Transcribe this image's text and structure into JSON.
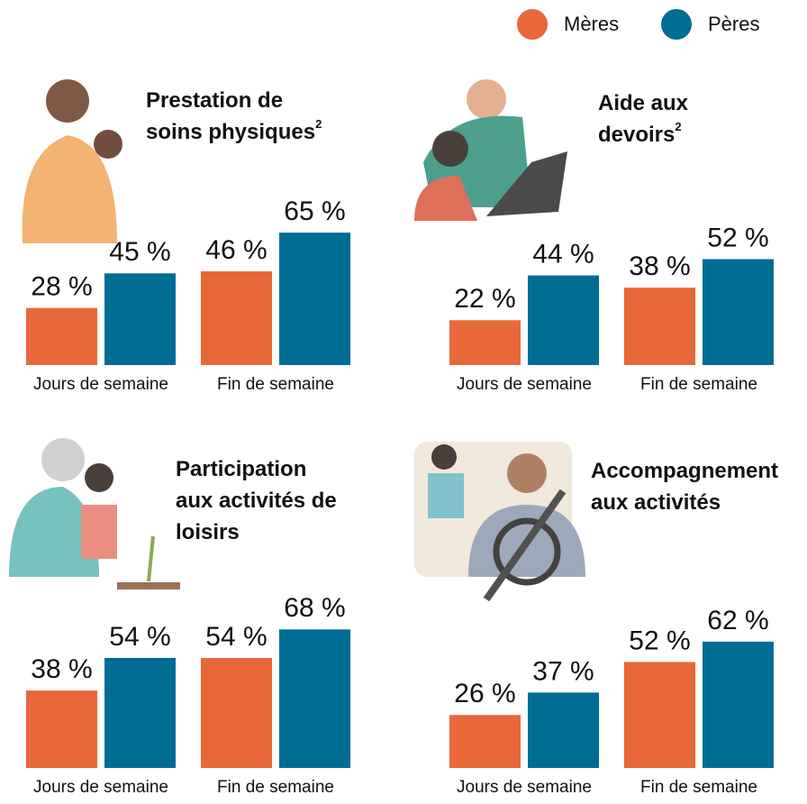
{
  "chart_data": [
    {
      "type": "bar",
      "title": [
        "Prestation de",
        "soins physiques"
      ],
      "title_note": "2",
      "categories": [
        "Jours de semaine",
        "Fin de semaine"
      ],
      "series": [
        {
          "name": "Mères",
          "color": "#e8683a",
          "values": [
            28,
            46
          ],
          "value_labels": [
            "28 %",
            "46 %"
          ]
        },
        {
          "name": "Pères",
          "color": "#006d94",
          "values": [
            45,
            65
          ],
          "value_labels": [
            "45 %",
            "65 %"
          ]
        }
      ],
      "ylim": [
        0,
        100
      ]
    },
    {
      "type": "bar",
      "title": [
        "Aide aux",
        "devoirs"
      ],
      "title_note": "2",
      "categories": [
        "Jours de semaine",
        "Fin de semaine"
      ],
      "series": [
        {
          "name": "Mères",
          "color": "#e8683a",
          "values": [
            22,
            38
          ],
          "value_labels": [
            "22 %",
            "38 %"
          ]
        },
        {
          "name": "Pères",
          "color": "#006d94",
          "values": [
            44,
            52
          ],
          "value_labels": [
            "44 %",
            "52 %"
          ]
        }
      ],
      "ylim": [
        0,
        100
      ]
    },
    {
      "type": "bar",
      "title": [
        "Participation",
        "aux activités de",
        "loisirs"
      ],
      "categories": [
        "Jours de semaine",
        "Fin de semaine"
      ],
      "series": [
        {
          "name": "Mères",
          "color": "#e8683a",
          "values": [
            38,
            54
          ],
          "value_labels": [
            "38 %",
            "54 %"
          ]
        },
        {
          "name": "Pères",
          "color": "#006d94",
          "values": [
            54,
            68
          ],
          "value_labels": [
            "54 %",
            "68 %"
          ]
        }
      ],
      "ylim": [
        0,
        100
      ]
    },
    {
      "type": "bar",
      "title": [
        "Accompagnement",
        "aux activités"
      ],
      "categories": [
        "Jours de semaine",
        "Fin de semaine"
      ],
      "series": [
        {
          "name": "Mères",
          "color": "#e8683a",
          "values": [
            26,
            52
          ],
          "value_labels": [
            "26 %",
            "52 %"
          ]
        },
        {
          "name": "Pères",
          "color": "#006d94",
          "values": [
            37,
            62
          ],
          "value_labels": [
            "37 %",
            "62 %"
          ]
        }
      ],
      "ylim": [
        0,
        100
      ]
    }
  ]
}
